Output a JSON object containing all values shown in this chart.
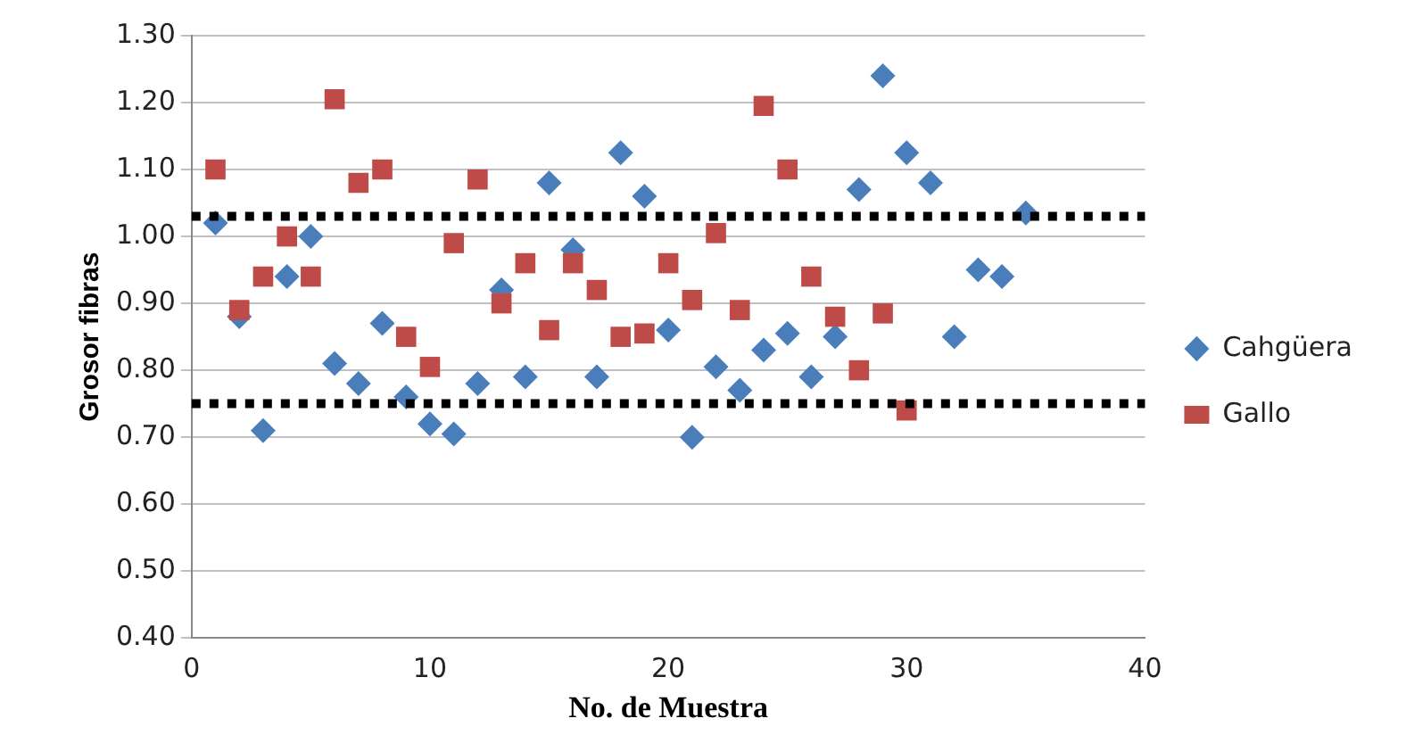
{
  "chart_data": {
    "type": "scatter",
    "xlabel": "No. de Muestra",
    "ylabel": "Grosor fibras",
    "x": [
      1,
      2,
      3,
      4,
      5,
      6,
      7,
      8,
      9,
      10,
      11,
      12,
      13,
      14,
      15,
      16,
      17,
      18,
      19,
      20,
      21,
      22,
      23,
      24,
      25,
      26,
      27,
      28,
      29,
      30,
      31,
      32,
      33,
      34,
      35
    ],
    "series": [
      {
        "name": "Cahgüera",
        "color": "#4a7ebb",
        "marker": "diamond",
        "values": [
          1.02,
          0.88,
          0.71,
          0.94,
          1.0,
          0.81,
          0.78,
          0.87,
          0.76,
          0.72,
          0.705,
          0.78,
          0.92,
          0.79,
          1.08,
          0.98,
          0.79,
          1.125,
          1.06,
          0.86,
          0.7,
          0.805,
          0.77,
          0.83,
          0.855,
          0.79,
          0.85,
          1.07,
          1.24,
          1.125,
          1.08,
          0.85,
          0.95,
          0.94,
          1.035
        ]
      },
      {
        "name": "Gallo",
        "color": "#be4b48",
        "marker": "square",
        "x": [
          1,
          2,
          3,
          4,
          5,
          6,
          7,
          8,
          9,
          10,
          11,
          12,
          13,
          14,
          15,
          16,
          17,
          18,
          19,
          20,
          21,
          22,
          23,
          24,
          25,
          26,
          27,
          28,
          29,
          30
        ],
        "values": [
          1.1,
          0.89,
          0.94,
          1.0,
          0.94,
          1.205,
          1.08,
          1.1,
          0.85,
          0.805,
          0.99,
          1.085,
          0.9,
          0.96,
          0.86,
          0.96,
          0.92,
          0.85,
          0.855,
          0.96,
          0.905,
          1.005,
          0.89,
          1.195,
          1.1,
          0.94,
          0.88,
          0.8,
          0.885,
          0.74
        ]
      }
    ],
    "xlim": [
      0,
      40
    ],
    "xticks": [
      0,
      10,
      20,
      30,
      40
    ],
    "ylim": [
      0.4,
      1.3
    ],
    "yticks": [
      {
        "value": 0.4,
        "label": "0.40"
      },
      {
        "value": 0.5,
        "label": "0.50"
      },
      {
        "value": 0.6,
        "label": "0.60"
      },
      {
        "value": 0.7,
        "label": "0.70"
      },
      {
        "value": 0.8,
        "label": "0.80"
      },
      {
        "value": 0.9,
        "label": "0.90"
      },
      {
        "value": 1.0,
        "label": "1.00"
      },
      {
        "value": 1.1,
        "label": "1.10"
      },
      {
        "value": 1.2,
        "label": "1.20"
      },
      {
        "value": 1.3,
        "label": "1.30"
      }
    ],
    "ref_lines": [
      {
        "axis": "y",
        "value": 1.03,
        "color": "#000000",
        "line_style": "dotted"
      },
      {
        "axis": "y",
        "value": 0.75,
        "color": "#000000",
        "line_style": "dotted"
      }
    ],
    "grid": "y",
    "legend": "right"
  }
}
